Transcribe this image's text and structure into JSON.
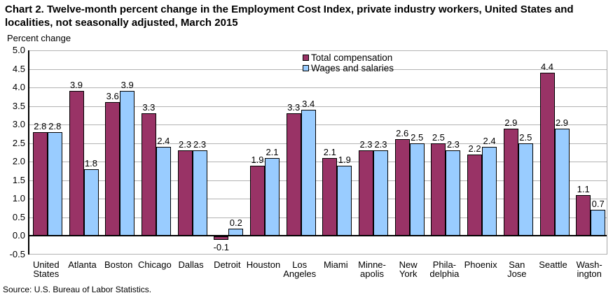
{
  "title": "Chart 2. Twelve-month percent change in the Employment Cost Index, private industry workers, United States and localities, not seasonally adjusted, March 2015",
  "source": "Source: U.S. Bureau of Labor Statistics.",
  "colors": {
    "total_compensation": "#993366",
    "wages_and_salaries": "#99CCFF",
    "gridline": "#b3b3b3",
    "axis": "#000000"
  },
  "chart_data": {
    "type": "bar",
    "title": "Chart 2. Twelve-month percent change in the Employment Cost Index, private industry workers, United States and localities, not seasonally adjusted, March 2015",
    "xlabel": "",
    "ylabel": "Percent change",
    "ylim": [
      -0.5,
      5.0
    ],
    "ytick_step": 0.5,
    "yticks": [
      "5.0",
      "4.5",
      "4.0",
      "3.5",
      "3.0",
      "2.5",
      "2.0",
      "1.5",
      "1.0",
      "0.5",
      "0.0",
      "-0.5"
    ],
    "grid": true,
    "legend_position": "top-center",
    "categories": [
      "United\nStates",
      "Atlanta",
      "Boston",
      "Chicago",
      "Dallas",
      "Detroit",
      "Houston",
      "Los\nAngeles",
      "Miami",
      "Minne-\napolis",
      "New\nYork",
      "Phila-\ndelphia",
      "Phoenix",
      "San\nJose",
      "Seattle",
      "Wash-\nington"
    ],
    "series": [
      {
        "name": "Total compensation",
        "color": "#993366",
        "values": [
          2.8,
          3.9,
          3.6,
          3.3,
          2.3,
          -0.1,
          1.9,
          3.3,
          2.1,
          2.3,
          2.6,
          2.5,
          2.2,
          2.9,
          4.4,
          1.1
        ]
      },
      {
        "name": "Wages and salaries",
        "color": "#99CCFF",
        "values": [
          2.8,
          1.8,
          3.9,
          2.4,
          2.3,
          0.2,
          2.1,
          3.4,
          1.9,
          2.3,
          2.5,
          2.3,
          2.4,
          2.5,
          2.9,
          0.7
        ]
      }
    ]
  }
}
